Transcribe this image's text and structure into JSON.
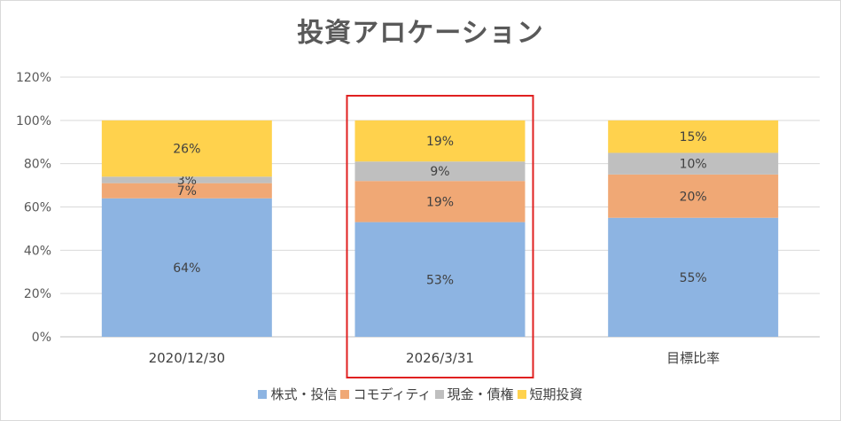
{
  "chart_data": {
    "type": "bar",
    "stacked": true,
    "title": "投資アロケーション",
    "xlabel": "",
    "ylabel": "",
    "ylim": [
      0,
      120
    ],
    "y_ticks": [
      "0%",
      "20%",
      "40%",
      "60%",
      "80%",
      "100%",
      "120%"
    ],
    "y_tick_values": [
      0,
      20,
      40,
      60,
      80,
      100,
      120
    ],
    "grid": true,
    "legend_position": "bottom",
    "categories": [
      "2020/12/30",
      "2026/3/31",
      "目標比率"
    ],
    "highlighted_category": "2026/3/31",
    "highlight_color": "#e02020",
    "series": [
      {
        "name": "株式・投信",
        "color": "#8db4e2",
        "values": [
          64,
          53,
          55
        ],
        "labels": [
          "64%",
          "53%",
          "55%"
        ]
      },
      {
        "name": "コモディティ",
        "color": "#f0a875",
        "values": [
          7,
          19,
          20
        ],
        "labels": [
          "7%",
          "19%",
          "20%"
        ]
      },
      {
        "name": "現金・債権",
        "color": "#bfbfbf",
        "values": [
          3,
          9,
          10
        ],
        "labels": [
          "3%",
          "9%",
          "10%"
        ]
      },
      {
        "name": "短期投資",
        "color": "#ffd24d",
        "values": [
          26,
          19,
          15
        ],
        "labels": [
          "26%",
          "19%",
          "15%"
        ]
      }
    ]
  }
}
